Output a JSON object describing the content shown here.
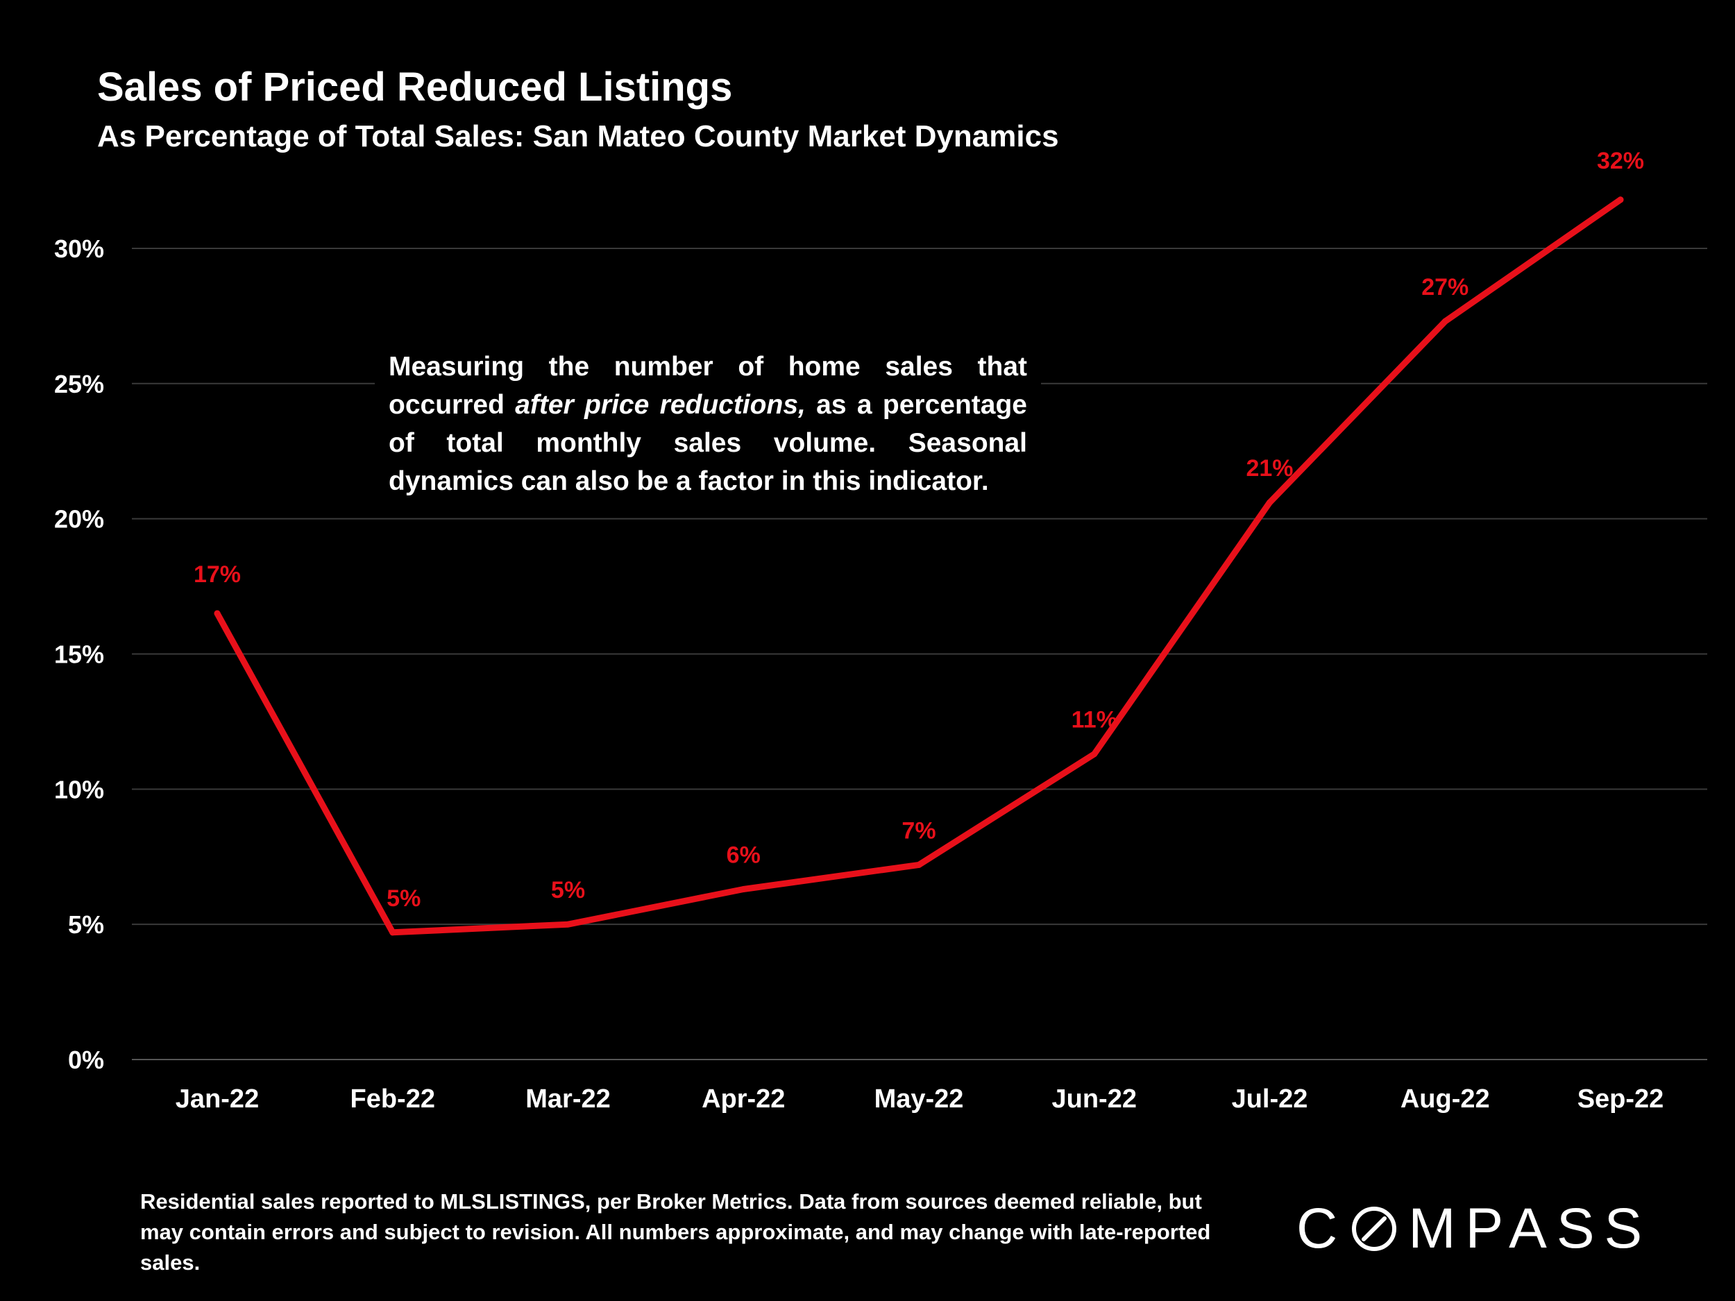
{
  "header": {
    "title": "Sales of Priced Reduced Listings",
    "subtitle": "As Percentage of Total Sales:  San Mateo County Market Dynamics"
  },
  "note": {
    "part1": "Measuring the number of home sales that occurred ",
    "italic": "after price reductions,",
    "part2": " as a percentage of total monthly sales volume. Seasonal dynamics can also be a factor in this indicator."
  },
  "footer": {
    "text": "Residential sales reported to MLSLISTINGS, per Broker Metrics. Data from sources deemed reliable, but may contain errors and subject to revision. All numbers approximate, and may change with late-reported sales."
  },
  "brand": {
    "logo_pre": "C",
    "logo_post": "MPASS",
    "logo_full": "COMPASS"
  },
  "colors": {
    "background": "#000000",
    "line": "#e8101a",
    "label": "#e8101a",
    "grid": "#3a3a3a",
    "text": "#ffffff"
  },
  "chart_data": {
    "type": "line",
    "title": "Sales of Priced Reduced Listings",
    "subtitle": "As Percentage of Total Sales:  San Mateo County Market Dynamics",
    "xlabel": "",
    "ylabel": "",
    "categories": [
      "Jan-22",
      "Feb-22",
      "Mar-22",
      "Apr-22",
      "May-22",
      "Jun-22",
      "Jul-22",
      "Aug-22",
      "Sep-22"
    ],
    "series": [
      {
        "name": "Sales of Priced Reduced Listings",
        "values": [
          16.5,
          4.7,
          5.0,
          6.3,
          7.2,
          11.3,
          20.6,
          27.3,
          31.8
        ],
        "labels": [
          "17%",
          "5%",
          "5%",
          "6%",
          "7%",
          "11%",
          "21%",
          "27%",
          "32%"
        ]
      }
    ],
    "ylim": [
      0,
      30
    ],
    "yticks": [
      0,
      5,
      10,
      15,
      20,
      25,
      30
    ],
    "ytick_labels": [
      "0%",
      "5%",
      "10%",
      "15%",
      "20%",
      "25%",
      "30%"
    ],
    "grid": true,
    "legend": "none"
  }
}
